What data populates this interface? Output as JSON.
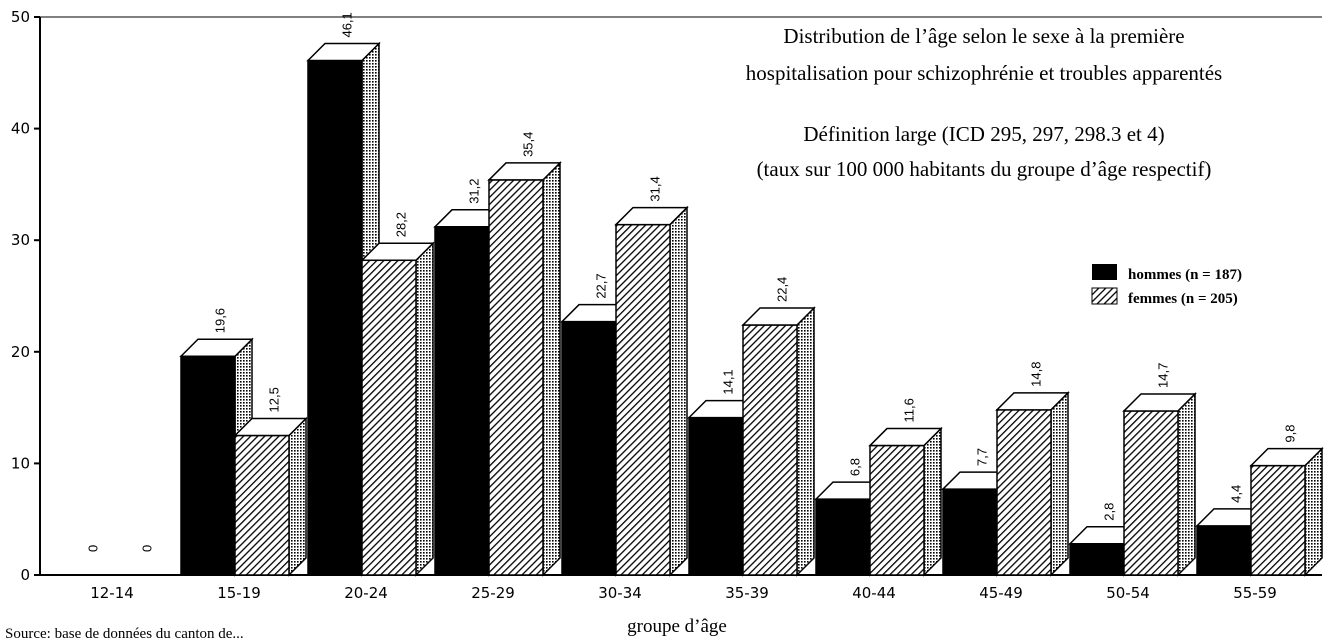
{
  "chart_data": {
    "type": "bar",
    "title_lines": [
      "Distribution de l’âge selon le sexe à la première",
      "hospitalisation pour schizophrénie et troubles apparentés"
    ],
    "subtitle_lines": [
      "Définition large (ICD 295, 297, 298.3 et 4)",
      "(taux sur 100 000 habitants du groupe d’âge respectif)"
    ],
    "xlabel": "groupe d’âge",
    "ylabel": "",
    "ylim": [
      0,
      50
    ],
    "yticks": [
      "0",
      "10",
      "20",
      "30",
      "40",
      "50"
    ],
    "categories": [
      "12-14",
      "15-19",
      "20-24",
      "25-29",
      "30-34",
      "35-39",
      "40-44",
      "45-49",
      "50-54",
      "55-59"
    ],
    "series": [
      {
        "name": "hommes (n = 187)",
        "values": [
          0,
          19.6,
          46.1,
          31.2,
          22.7,
          14.1,
          6.8,
          7.7,
          2.8,
          4.4
        ],
        "labels": [
          "0",
          "19,6",
          "46,1",
          "31,2",
          "22,7",
          "14,1",
          "6,8",
          "7,7",
          "2,8",
          "4,4"
        ],
        "color": "#000000",
        "pattern": "solid"
      },
      {
        "name": "femmes (n = 205)",
        "values": [
          0,
          12.5,
          28.2,
          35.4,
          31.4,
          22.4,
          11.6,
          14.8,
          14.7,
          9.8
        ],
        "labels": [
          "0",
          "12,5",
          "28,2",
          "35,4",
          "31,4",
          "22,4",
          "11,6",
          "14,8",
          "14,7",
          "9,8"
        ],
        "color": "#000000",
        "pattern": "hatched"
      }
    ],
    "legend_position": "right",
    "grid": false,
    "source_fragment": "Source: base de données du canton de..."
  }
}
